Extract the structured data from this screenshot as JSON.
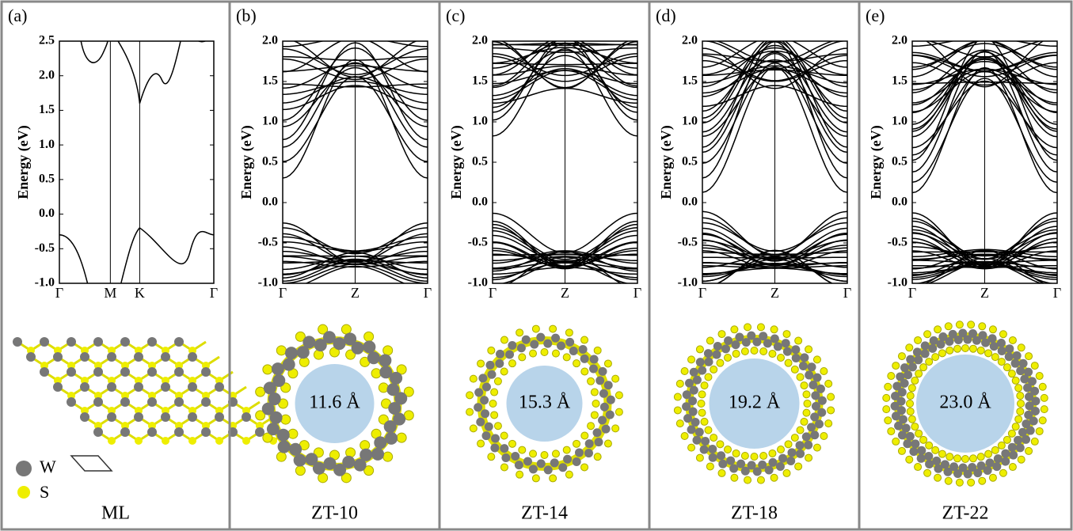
{
  "panels": [
    {
      "label": "(a)",
      "y_axis_label": "Energy (eV)",
      "y_ticks": [
        "2.5",
        "2.0",
        "1.5",
        "1.0",
        "0.5",
        "0.0",
        "-0.5",
        "-1.0"
      ],
      "x_ticks": [
        "Γ",
        "M",
        "K",
        "Γ"
      ],
      "legend": [
        "W",
        "S"
      ],
      "caption": "ML"
    },
    {
      "label": "(b)",
      "y_axis_label": "Energy (eV)",
      "y_ticks": [
        "2.0",
        "1.5",
        "1.0",
        "0.5",
        "0.0",
        "-0.5",
        "-1.0"
      ],
      "x_ticks": [
        "Γ",
        "Z",
        "Γ"
      ],
      "diameter": "11.6 Å",
      "caption": "ZT-10"
    },
    {
      "label": "(c)",
      "y_axis_label": "Energy (eV)",
      "y_ticks": [
        "2.0",
        "1.5",
        "1.0",
        "0.5",
        "0.0",
        "-0.5",
        "-1.0"
      ],
      "x_ticks": [
        "Γ",
        "Z",
        "Γ"
      ],
      "diameter": "15.3 Å",
      "caption": "ZT-14"
    },
    {
      "label": "(d)",
      "y_axis_label": "Energy (eV)",
      "y_ticks": [
        "2.0",
        "1.5",
        "1.0",
        "0.5",
        "0.0",
        "-0.5",
        "-1.0"
      ],
      "x_ticks": [
        "Γ",
        "Z",
        "Γ"
      ],
      "diameter": "19.2 Å",
      "caption": "ZT-18"
    },
    {
      "label": "(e)",
      "y_axis_label": "Energy (eV)",
      "y_ticks": [
        "2.0",
        "1.5",
        "1.0",
        "0.5",
        "0.0",
        "-0.5",
        "-1.0"
      ],
      "x_ticks": [
        "Γ",
        "Z",
        "Γ"
      ],
      "diameter": "23.0 Å",
      "caption": "ZT-22"
    }
  ]
}
